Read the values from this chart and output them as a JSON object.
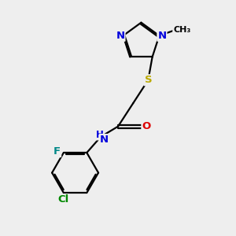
{
  "bg_color": "#eeeeee",
  "bond_color": "#000000",
  "bond_width": 1.6,
  "atom_colors": {
    "N": "#0000dd",
    "O": "#dd0000",
    "S": "#bbaa00",
    "F": "#008888",
    "Cl": "#008800",
    "C": "#000000",
    "H": "#000000"
  },
  "font_size": 9.5,
  "dbo": 0.07
}
